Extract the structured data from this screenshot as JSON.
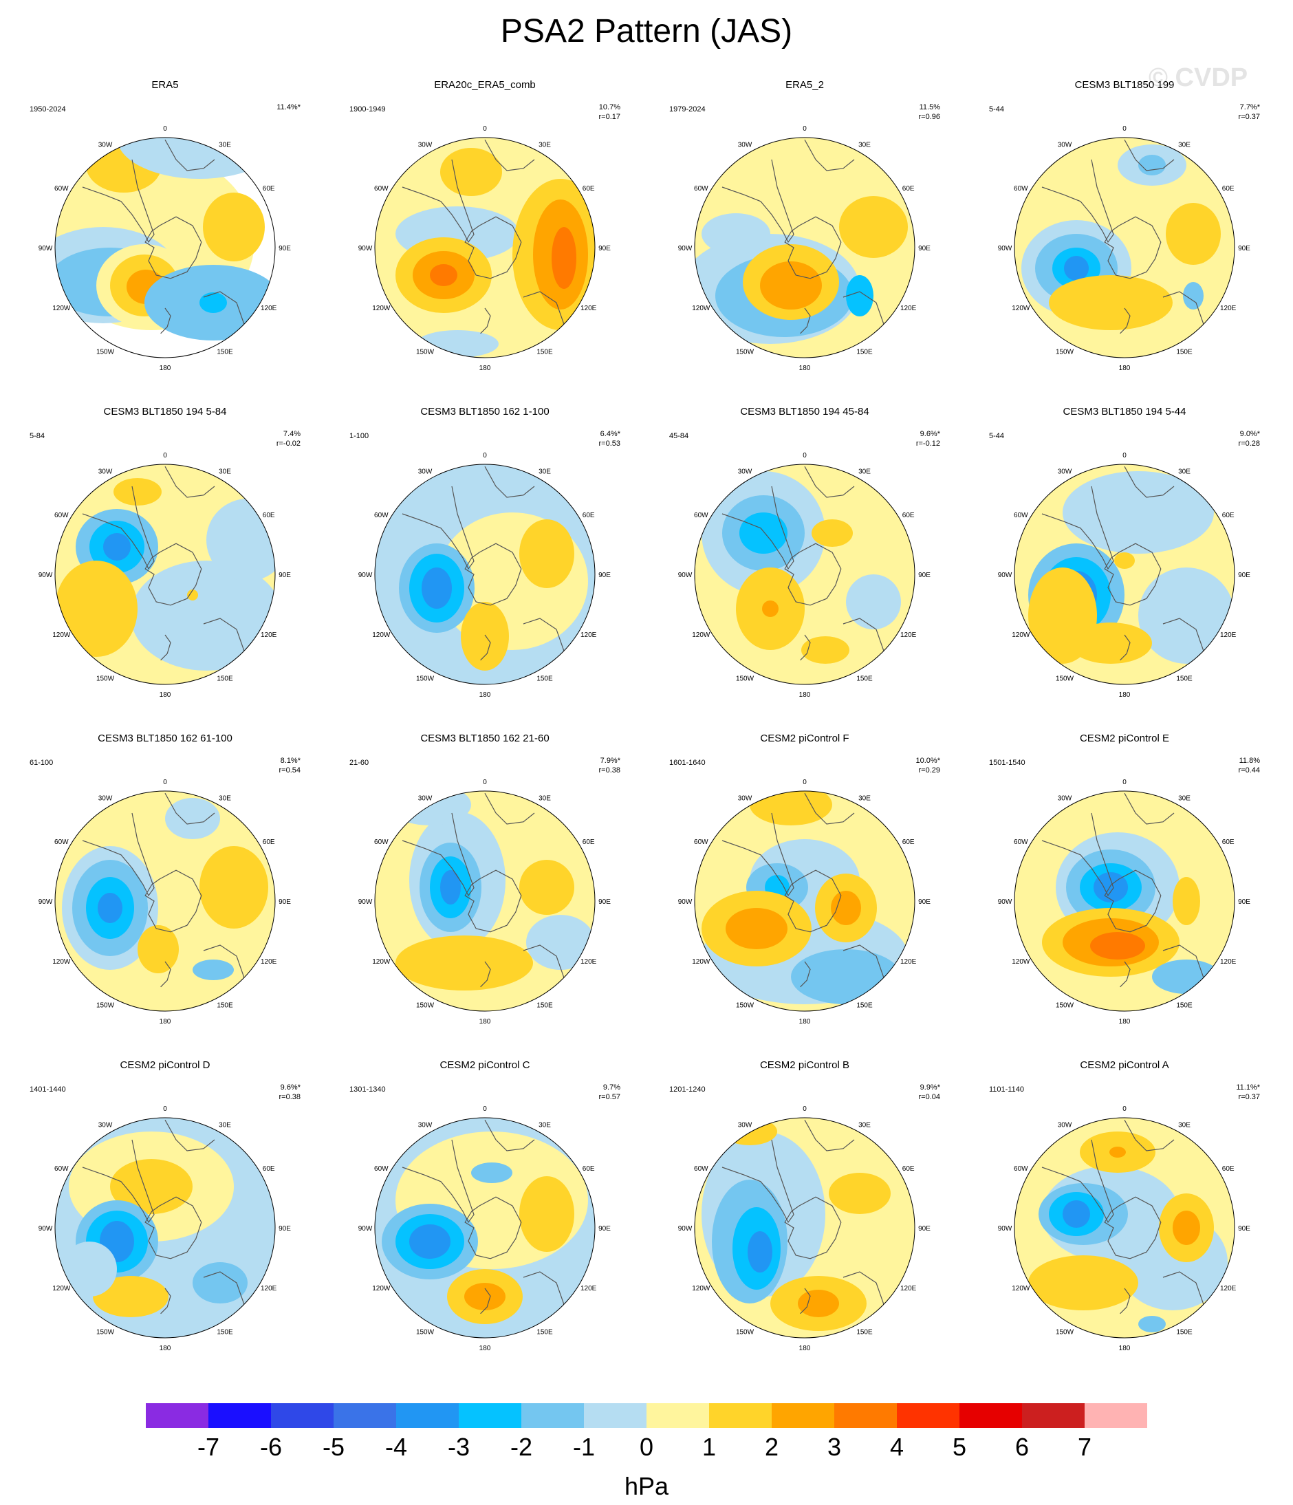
{
  "title": "PSA2 Pattern (JAS)",
  "watermark": "© CVDP",
  "longitude_labels": [
    "0",
    "30E",
    "60E",
    "90E",
    "120E",
    "150E",
    "180",
    "150W",
    "120W",
    "90W",
    "60W",
    "30W"
  ],
  "panels": [
    {
      "title": "ERA5",
      "period": "1950-2024",
      "pct": "11.4%*",
      "r": ""
    },
    {
      "title": "ERA20c_ERA5_comb",
      "period": "1900-1949",
      "pct": "10.7%",
      "r": "r=0.17"
    },
    {
      "title": "ERA5_2",
      "period": "1979-2024",
      "pct": "11.5%",
      "r": "r=0.96"
    },
    {
      "title": "CESM3 BLT1850 199",
      "period": "5-44",
      "pct": "7.7%*",
      "r": "r=0.37"
    },
    {
      "title": "CESM3 BLT1850 194 5-84",
      "period": "5-84",
      "pct": "7.4%",
      "r": "r=-0.02"
    },
    {
      "title": "CESM3 BLT1850 162 1-100",
      "period": "1-100",
      "pct": "6.4%*",
      "r": "r=0.53"
    },
    {
      "title": "CESM3 BLT1850 194 45-84",
      "period": "45-84",
      "pct": "9.6%*",
      "r": "r=-0.12"
    },
    {
      "title": "CESM3 BLT1850 194 5-44",
      "period": "5-44",
      "pct": "9.0%*",
      "r": "r=0.28"
    },
    {
      "title": "CESM3 BLT1850 162 61-100",
      "period": "61-100",
      "pct": "8.1%*",
      "r": "r=0.54"
    },
    {
      "title": "CESM3 BLT1850 162 21-60",
      "period": "21-60",
      "pct": "7.9%*",
      "r": "r=0.38"
    },
    {
      "title": "CESM2 piControl F",
      "period": "1601-1640",
      "pct": "10.0%*",
      "r": "r=0.29"
    },
    {
      "title": "CESM2 piControl E",
      "period": "1501-1540",
      "pct": "11.8%",
      "r": "r=0.44"
    },
    {
      "title": "CESM2 piControl D",
      "period": "1401-1440",
      "pct": "9.6%*",
      "r": "r=0.38"
    },
    {
      "title": "CESM2 piControl C",
      "period": "1301-1340",
      "pct": "9.7%",
      "r": "r=0.57"
    },
    {
      "title": "CESM2 piControl B",
      "period": "1201-1240",
      "pct": "9.9%*",
      "r": "r=0.04"
    },
    {
      "title": "CESM2 piControl A",
      "period": "1101-1140",
      "pct": "11.1%*",
      "r": "r=0.37"
    }
  ],
  "colorbar": {
    "units": "hPa",
    "tick_labels": [
      "-7",
      "-6",
      "-5",
      "-4",
      "-3",
      "-2",
      "-1",
      "0",
      "1",
      "2",
      "3",
      "4",
      "5",
      "6",
      "7"
    ],
    "colors": [
      "#8a2be2",
      "#1a0fff",
      "#2f48e8",
      "#3a73e8",
      "#2196f3",
      "#05c2ff",
      "#74c6f0",
      "#b5ddf2",
      "#fff59d",
      "#ffd42a",
      "#ffa500",
      "#ff7a00",
      "#ff3300",
      "#e60000",
      "#cc1f1f",
      "#ffb3b3"
    ]
  },
  "map_colors": {
    "land_outline": "#555555",
    "circle_outline": "#000000"
  }
}
